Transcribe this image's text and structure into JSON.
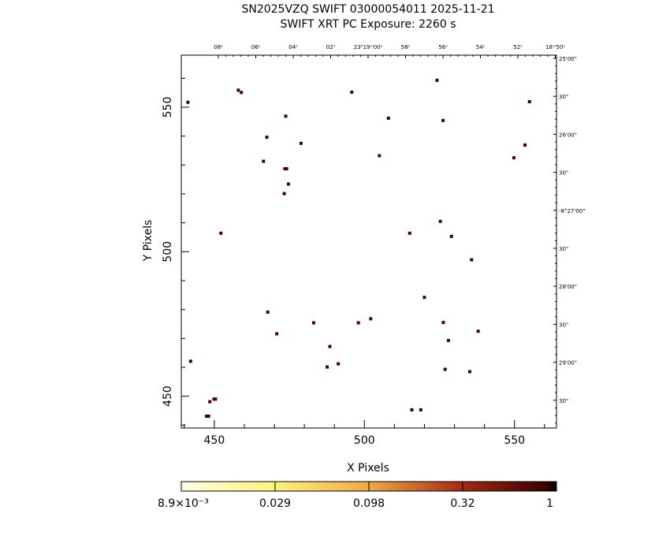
{
  "title_line1": "SN2025VZQ SWIFT 03000054011 2025-11-21",
  "title_line2": "SWIFT XRT PC Exposure:       2260 s",
  "chart_data": {
    "type": "scatter",
    "xlabel": "X Pixels",
    "ylabel": "Y Pixels",
    "xlim": [
      439,
      564
    ],
    "ylim": [
      439,
      568
    ],
    "x_ticks": [
      "450",
      "500",
      "550"
    ],
    "y_ticks": [
      "450",
      "500",
      "550"
    ],
    "ra_labels": [
      "08ˢ",
      "06ˢ",
      "04ˢ",
      "02ˢ",
      "23ʰ19ᵐ00ˢ",
      "58ˢ",
      "56ˢ",
      "54ˢ",
      "52ˢ",
      "18ᵐ50ˢ"
    ],
    "dec_labels": [
      "25'00\"",
      "30\"",
      "26'00\"",
      "30\"",
      "-8°27'00\"",
      "30\"",
      "28'00\"",
      "30\"",
      "29'00\"",
      "30\""
    ],
    "points": [
      {
        "x": 441.2,
        "y": 551.7
      },
      {
        "x": 458.0,
        "y": 555.9
      },
      {
        "x": 459.0,
        "y": 555.1
      },
      {
        "x": 495.8,
        "y": 555.2
      },
      {
        "x": 524.2,
        "y": 559.3
      },
      {
        "x": 555.0,
        "y": 551.9
      },
      {
        "x": 473.8,
        "y": 546.9
      },
      {
        "x": 508.0,
        "y": 546.2
      },
      {
        "x": 526.2,
        "y": 545.4
      },
      {
        "x": 467.5,
        "y": 539.6
      },
      {
        "x": 478.9,
        "y": 537.5
      },
      {
        "x": 553.5,
        "y": 536.9
      },
      {
        "x": 505.0,
        "y": 533.2
      },
      {
        "x": 549.8,
        "y": 532.5
      },
      {
        "x": 466.4,
        "y": 531.3
      },
      {
        "x": 473.5,
        "y": 528.7
      },
      {
        "x": 474.1,
        "y": 528.7
      },
      {
        "x": 474.7,
        "y": 523.4
      },
      {
        "x": 473.3,
        "y": 520.1
      },
      {
        "x": 525.3,
        "y": 510.5
      },
      {
        "x": 452.2,
        "y": 506.4
      },
      {
        "x": 515.1,
        "y": 506.4
      },
      {
        "x": 529.0,
        "y": 505.3
      },
      {
        "x": 535.7,
        "y": 497.2
      },
      {
        "x": 520.0,
        "y": 484.2
      },
      {
        "x": 467.8,
        "y": 479.1
      },
      {
        "x": 502.1,
        "y": 476.8
      },
      {
        "x": 483.1,
        "y": 475.4
      },
      {
        "x": 498.0,
        "y": 475.4
      },
      {
        "x": 526.3,
        "y": 475.5
      },
      {
        "x": 470.8,
        "y": 471.6
      },
      {
        "x": 537.9,
        "y": 472.5
      },
      {
        "x": 528.0,
        "y": 469.3
      },
      {
        "x": 488.5,
        "y": 467.2
      },
      {
        "x": 442.1,
        "y": 462.1
      },
      {
        "x": 491.3,
        "y": 461.2
      },
      {
        "x": 487.6,
        "y": 460.1
      },
      {
        "x": 526.9,
        "y": 459.3
      },
      {
        "x": 535.1,
        "y": 458.5
      },
      {
        "x": 450.4,
        "y": 449.0
      },
      {
        "x": 449.9,
        "y": 449.0
      },
      {
        "x": 448.5,
        "y": 448.1
      },
      {
        "x": 515.8,
        "y": 445.3
      },
      {
        "x": 518.8,
        "y": 445.3
      },
      {
        "x": 447.4,
        "y": 443.1
      },
      {
        "x": 448.1,
        "y": 443.1
      }
    ]
  },
  "colorbar": {
    "labels": [
      "8.9×10⁻³",
      "0.029",
      "0.098",
      "0.32",
      "1"
    ],
    "colors": [
      "#ffffe0",
      "#fff57a",
      "#f0b648",
      "#c9541f",
      "#7a0a0a",
      "#000000"
    ]
  },
  "colors": {
    "point": "#4a0000",
    "axis": "#000000"
  }
}
